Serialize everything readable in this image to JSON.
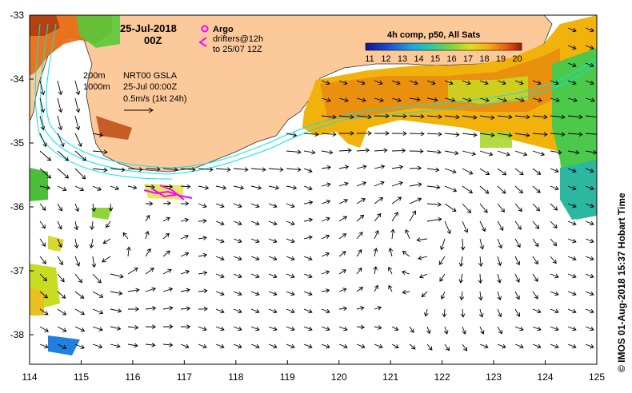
{
  "map": {
    "date": "25-Jul-2018",
    "time": "00Z",
    "legend_argo": "Argo",
    "legend_drifters": "drifters@12h",
    "legend_drifters_to": "to 25/07 12Z",
    "contour_200": "200m",
    "contour_1000": "1000m",
    "product": "NRT00 GSLA",
    "product_time": "25-Jul 00:00Z",
    "scale_label": "0.5m/s (1kt 24h)",
    "colorbar_title": "4h comp, p50, All Sats",
    "colorbar_ticks": [
      "11",
      "12",
      "13",
      "14",
      "15",
      "16",
      "17",
      "18",
      "19",
      "20"
    ],
    "credit": "© IMOS 01-Aug-2018 15:37 Hobart Time",
    "x_ticks": [
      "114",
      "115",
      "116",
      "117",
      "118",
      "119",
      "120",
      "121",
      "122",
      "123",
      "124",
      "125"
    ],
    "y_ticks": [
      "-33",
      "-34",
      "-35",
      "-36",
      "-37",
      "-38"
    ],
    "colors": {
      "land": "#fcc99a",
      "drifter": "#ff00ff",
      "argo": "#ff00ff",
      "contour": "#00e5ee",
      "arrow": "#000000"
    }
  }
}
